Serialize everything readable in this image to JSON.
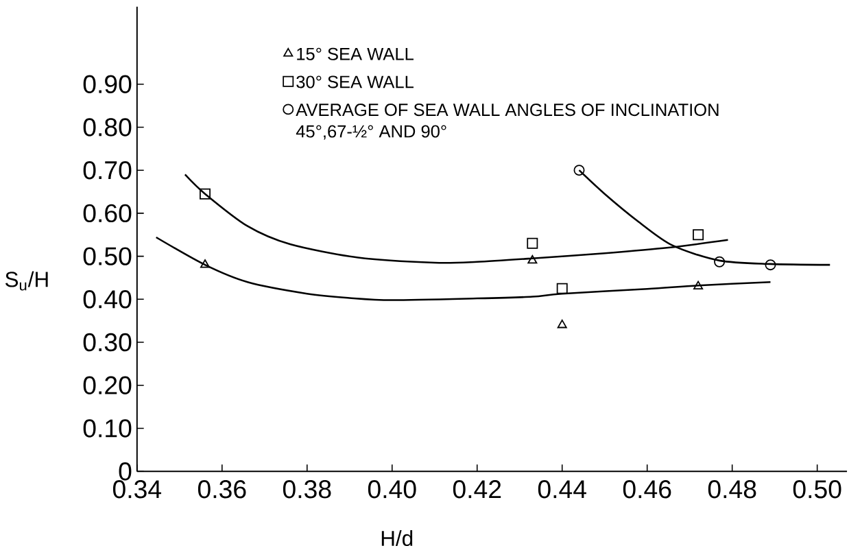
{
  "chart_data": {
    "type": "scatter",
    "xlabel": "H/d",
    "ylabel": "S$_{u}$/H",
    "xlim": [
      0.34,
      0.507
    ],
    "ylim": [
      0,
      1.08
    ],
    "xticks": [
      0.34,
      0.36,
      0.38,
      {
        "value": 0.4,
        "label": "0.40"
      },
      0.42,
      0.44,
      0.46,
      0.48,
      {
        "value": 0.5,
        "label": "0.50"
      }
    ],
    "yticks": [
      {
        "value": 0,
        "label": "0"
      },
      {
        "value": 0.1,
        "label": "0.10"
      },
      {
        "value": 0.2,
        "label": "0.20"
      },
      {
        "value": 0.3,
        "label": "0.30"
      },
      {
        "value": 0.4,
        "label": "0.40"
      },
      {
        "value": 0.5,
        "label": "0.50"
      },
      {
        "value": 0.6,
        "label": "0.60"
      },
      {
        "value": 0.7,
        "label": "0.70"
      },
      {
        "value": 0.8,
        "label": "0.80"
      },
      {
        "value": 0.9,
        "label": "0.90"
      }
    ],
    "grid": false,
    "legend": "top",
    "series": [
      {
        "name": "15° SEA WALL",
        "marker": "triangle",
        "color": "#000000",
        "x": [
          0.356,
          0.433,
          0.44,
          0.472
        ],
        "values": [
          0.48,
          0.49,
          0.34,
          0.43
        ]
      },
      {
        "name": "30° SEA WALL",
        "marker": "square",
        "color": "#000000",
        "x": [
          0.356,
          0.433,
          0.44,
          0.472
        ],
        "values": [
          0.645,
          0.53,
          0.425,
          0.55
        ]
      },
      {
        "name": "AVERAGE OF SEA WALL ANGLES OF INCLINATION 45°,67-½° AND 90°",
        "marker": "circle",
        "color": "#000000",
        "x": [
          0.444,
          0.477,
          0.489
        ],
        "values": [
          0.7,
          0.487,
          0.48
        ]
      },
      {
        "type": "line",
        "marker": "none",
        "color": "#000000",
        "x": [
          0.3445,
          0.356,
          0.366,
          0.38,
          0.39,
          0.4,
          0.42,
          0.433,
          0.44,
          0.46,
          0.472,
          0.489
        ],
        "values": [
          0.544,
          0.48,
          0.44,
          0.413,
          0.403,
          0.398,
          0.402,
          0.406,
          0.413,
          0.424,
          0.432,
          0.44
        ]
      },
      {
        "type": "line",
        "marker": "none",
        "color": "#000000",
        "x": [
          0.3513,
          0.356,
          0.366,
          0.376,
          0.392,
          0.41,
          0.42,
          0.433,
          0.45,
          0.465,
          0.479
        ],
        "values": [
          0.69,
          0.645,
          0.57,
          0.528,
          0.497,
          0.485,
          0.487,
          0.495,
          0.507,
          0.52,
          0.538
        ]
      },
      {
        "type": "line",
        "marker": "none",
        "color": "#000000",
        "x": [
          0.444,
          0.45,
          0.458,
          0.466,
          0.477,
          0.489,
          0.503
        ],
        "values": [
          0.7,
          0.645,
          0.58,
          0.525,
          0.49,
          0.482,
          0.48
        ]
      }
    ]
  }
}
